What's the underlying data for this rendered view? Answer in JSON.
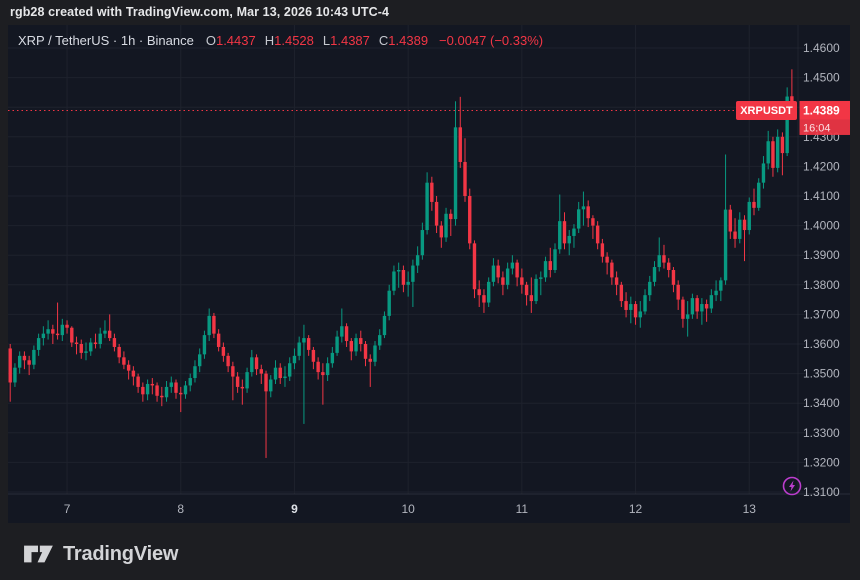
{
  "header": {
    "attribution": "rgb28 created with TradingView.com, Mar 13, 2026 10:43 UTC-4"
  },
  "legend": {
    "symbol_title": "XRP / TetherUS · 1h · Binance",
    "items": [
      {
        "k": "O",
        "v": "1.4437"
      },
      {
        "k": "H",
        "v": "1.4528"
      },
      {
        "k": "L",
        "v": "1.4387"
      },
      {
        "k": "C",
        "v": "1.4389"
      }
    ],
    "change": "−0.0047 (−0.33%)"
  },
  "price_scale": {
    "labels": [
      "1.4600",
      "1.4500",
      "1.4300",
      "1.4200",
      "1.4100",
      "1.4000",
      "1.3900",
      "1.3800",
      "1.3700",
      "1.3600",
      "1.3500",
      "1.3400",
      "1.3300",
      "1.3200",
      "1.3100"
    ],
    "last_price_badge": {
      "symbol_flag": "XRPUSDT",
      "price": "1.4389",
      "countdown": "16:04"
    }
  },
  "time_scale": {
    "ticks": [
      {
        "index": 12,
        "label": "7",
        "bold": false
      },
      {
        "index": 36,
        "label": "8",
        "bold": false
      },
      {
        "index": 60,
        "label": "9",
        "bold": true
      },
      {
        "index": 84,
        "label": "10",
        "bold": false
      },
      {
        "index": 108,
        "label": "11",
        "bold": false
      },
      {
        "index": 132,
        "label": "12",
        "bold": false
      },
      {
        "index": 156,
        "label": "13",
        "bold": false
      }
    ]
  },
  "footer": {
    "logo_text": "TradingView"
  },
  "colors": {
    "up": "#089981",
    "down": "#f23645",
    "chart_bg": "#131722",
    "outer_bg": "#1d1e22",
    "grid": "#1e222d",
    "separator": "#2a2e39",
    "axis_text": "#b2b5be",
    "axis_text_bold": "#dfe2e8",
    "badge_bg": "#f23645",
    "flash_icon": "#bb3dcd"
  },
  "chart_data": {
    "type": "candlestick",
    "symbol": "XRP/USDT",
    "exchange": "Binance",
    "interval": "1h",
    "title": "XRP / TetherUS · 1h · Binance",
    "current_price": 1.4389,
    "current_ohlc": {
      "o": 1.4437,
      "h": 1.4528,
      "l": 1.4387,
      "c": 1.4389
    },
    "change": -0.0047,
    "change_pct": -0.33,
    "ylim": [
      1.3093,
      1.4678
    ],
    "price_grid_step": 0.01,
    "price_grid": [
      1.31,
      1.32,
      1.33,
      1.34,
      1.35,
      1.36,
      1.37,
      1.38,
      1.39,
      1.4,
      1.41,
      1.42,
      1.43,
      1.44,
      1.45,
      1.46
    ],
    "hidden_price_label": 1.44,
    "x_axis_day_labels": [
      "7",
      "8",
      "9",
      "10",
      "11",
      "12",
      "13"
    ],
    "candles_format": [
      "open",
      "high",
      "low",
      "close"
    ],
    "candles": [
      [
        1.3585,
        1.36,
        1.3405,
        1.347
      ],
      [
        1.347,
        1.3535,
        1.3455,
        1.352
      ],
      [
        1.352,
        1.3575,
        1.35,
        1.356
      ],
      [
        1.356,
        1.3575,
        1.3515,
        1.3545
      ],
      [
        1.3545,
        1.356,
        1.3495,
        1.353
      ],
      [
        1.353,
        1.3595,
        1.3515,
        1.358
      ],
      [
        1.358,
        1.3635,
        1.356,
        1.362
      ],
      [
        1.362,
        1.366,
        1.3595,
        1.3635
      ],
      [
        1.3635,
        1.368,
        1.3615,
        1.365
      ],
      [
        1.365,
        1.3665,
        1.36,
        1.3635
      ],
      [
        1.3635,
        1.374,
        1.3615,
        1.363
      ],
      [
        1.363,
        1.3685,
        1.361,
        1.3665
      ],
      [
        1.3665,
        1.368,
        1.3635,
        1.3655
      ],
      [
        1.3655,
        1.366,
        1.359,
        1.3605
      ],
      [
        1.3605,
        1.3625,
        1.3565,
        1.36
      ],
      [
        1.36,
        1.3615,
        1.355,
        1.357
      ],
      [
        1.357,
        1.3605,
        1.3545,
        1.3575
      ],
      [
        1.3575,
        1.362,
        1.356,
        1.3605
      ],
      [
        1.3605,
        1.3635,
        1.3585,
        1.36
      ],
      [
        1.36,
        1.3655,
        1.3585,
        1.3635
      ],
      [
        1.3635,
        1.368,
        1.362,
        1.3645
      ],
      [
        1.3645,
        1.37,
        1.361,
        1.362
      ],
      [
        1.362,
        1.3635,
        1.3575,
        1.359
      ],
      [
        1.359,
        1.36,
        1.3535,
        1.3555
      ],
      [
        1.3555,
        1.3575,
        1.3515,
        1.353
      ],
      [
        1.353,
        1.3545,
        1.348,
        1.351
      ],
      [
        1.351,
        1.3525,
        1.346,
        1.349
      ],
      [
        1.349,
        1.35,
        1.3435,
        1.3455
      ],
      [
        1.3455,
        1.347,
        1.3405,
        1.343
      ],
      [
        1.343,
        1.348,
        1.341,
        1.3465
      ],
      [
        1.3465,
        1.3485,
        1.343,
        1.346
      ],
      [
        1.346,
        1.347,
        1.3405,
        1.3425
      ],
      [
        1.3425,
        1.3455,
        1.339,
        1.342
      ],
      [
        1.342,
        1.3475,
        1.3405,
        1.3455
      ],
      [
        1.3455,
        1.349,
        1.3435,
        1.347
      ],
      [
        1.347,
        1.348,
        1.3415,
        1.3435
      ],
      [
        1.3435,
        1.3455,
        1.337,
        1.343
      ],
      [
        1.343,
        1.3475,
        1.3415,
        1.346
      ],
      [
        1.346,
        1.35,
        1.344,
        1.3485
      ],
      [
        1.3485,
        1.3545,
        1.347,
        1.3525
      ],
      [
        1.3525,
        1.3585,
        1.3505,
        1.3565
      ],
      [
        1.3565,
        1.3645,
        1.355,
        1.363
      ],
      [
        1.363,
        1.372,
        1.361,
        1.3695
      ],
      [
        1.3695,
        1.3705,
        1.362,
        1.3635
      ],
      [
        1.3635,
        1.365,
        1.3575,
        1.359
      ],
      [
        1.359,
        1.3605,
        1.354,
        1.356
      ],
      [
        1.356,
        1.357,
        1.3505,
        1.3525
      ],
      [
        1.3525,
        1.354,
        1.341,
        1.349
      ],
      [
        1.349,
        1.3505,
        1.3435,
        1.3455
      ],
      [
        1.3455,
        1.348,
        1.3395,
        1.345
      ],
      [
        1.345,
        1.352,
        1.3435,
        1.3505
      ],
      [
        1.3505,
        1.358,
        1.349,
        1.3555
      ],
      [
        1.3555,
        1.3565,
        1.3495,
        1.3515
      ],
      [
        1.3515,
        1.353,
        1.3465,
        1.35
      ],
      [
        1.35,
        1.351,
        1.3215,
        1.344
      ],
      [
        1.344,
        1.3495,
        1.342,
        1.348
      ],
      [
        1.348,
        1.3545,
        1.3465,
        1.352
      ],
      [
        1.352,
        1.3535,
        1.3465,
        1.3485
      ],
      [
        1.3485,
        1.3525,
        1.3455,
        1.349
      ],
      [
        1.349,
        1.3555,
        1.3475,
        1.3535
      ],
      [
        1.3535,
        1.3585,
        1.3515,
        1.356
      ],
      [
        1.356,
        1.3625,
        1.3545,
        1.3605
      ],
      [
        1.3605,
        1.3665,
        1.333,
        1.362
      ],
      [
        1.362,
        1.363,
        1.356,
        1.358
      ],
      [
        1.358,
        1.359,
        1.3515,
        1.354
      ],
      [
        1.354,
        1.3555,
        1.348,
        1.3505
      ],
      [
        1.3505,
        1.3535,
        1.3395,
        1.3495
      ],
      [
        1.3495,
        1.3555,
        1.3475,
        1.3535
      ],
      [
        1.3535,
        1.359,
        1.352,
        1.357
      ],
      [
        1.357,
        1.3645,
        1.356,
        1.3625
      ],
      [
        1.3625,
        1.372,
        1.3605,
        1.366
      ],
      [
        1.366,
        1.367,
        1.359,
        1.361
      ],
      [
        1.361,
        1.362,
        1.3545,
        1.3575
      ],
      [
        1.3575,
        1.3635,
        1.356,
        1.362
      ],
      [
        1.362,
        1.3645,
        1.3575,
        1.36
      ],
      [
        1.36,
        1.361,
        1.3525,
        1.355
      ],
      [
        1.355,
        1.3565,
        1.3455,
        1.354
      ],
      [
        1.354,
        1.361,
        1.3525,
        1.3595
      ],
      [
        1.3595,
        1.365,
        1.358,
        1.363
      ],
      [
        1.363,
        1.371,
        1.362,
        1.3695
      ],
      [
        1.3695,
        1.38,
        1.368,
        1.378
      ],
      [
        1.378,
        1.3865,
        1.3765,
        1.3845
      ],
      [
        1.3845,
        1.3875,
        1.379,
        1.385
      ],
      [
        1.385,
        1.3865,
        1.3775,
        1.38
      ],
      [
        1.38,
        1.3845,
        1.376,
        1.381
      ],
      [
        1.381,
        1.3885,
        1.3725,
        1.3865
      ],
      [
        1.3865,
        1.393,
        1.384,
        1.39
      ],
      [
        1.39,
        1.401,
        1.3885,
        1.3985
      ],
      [
        1.3985,
        1.418,
        1.397,
        1.4145
      ],
      [
        1.4145,
        1.4165,
        1.405,
        1.408
      ],
      [
        1.408,
        1.41,
        1.3975,
        1.4
      ],
      [
        1.4,
        1.4015,
        1.3925,
        1.396
      ],
      [
        1.396,
        1.406,
        1.3945,
        1.404
      ],
      [
        1.404,
        1.4055,
        1.3965,
        1.4022
      ],
      [
        1.4022,
        1.442,
        1.4,
        1.4332
      ],
      [
        1.4332,
        1.4435,
        1.4195,
        1.4215
      ],
      [
        1.4215,
        1.4295,
        1.408,
        1.41
      ],
      [
        1.41,
        1.4125,
        1.392,
        1.394
      ],
      [
        1.394,
        1.395,
        1.3755,
        1.3785
      ],
      [
        1.3785,
        1.3815,
        1.3725,
        1.3765
      ],
      [
        1.3765,
        1.3785,
        1.3705,
        1.374
      ],
      [
        1.374,
        1.3825,
        1.3725,
        1.381
      ],
      [
        1.381,
        1.389,
        1.3795,
        1.3865
      ],
      [
        1.3865,
        1.3885,
        1.3805,
        1.3825
      ],
      [
        1.3825,
        1.3845,
        1.3765,
        1.38
      ],
      [
        1.38,
        1.3875,
        1.3785,
        1.3855
      ],
      [
        1.3855,
        1.39,
        1.3835,
        1.3875
      ],
      [
        1.3875,
        1.3885,
        1.3795,
        1.3825
      ],
      [
        1.3825,
        1.3855,
        1.377,
        1.38
      ],
      [
        1.38,
        1.381,
        1.373,
        1.3765
      ],
      [
        1.3765,
        1.3825,
        1.3705,
        1.3745
      ],
      [
        1.3745,
        1.3835,
        1.3735,
        1.382
      ],
      [
        1.382,
        1.3845,
        1.3765,
        1.3825
      ],
      [
        1.3825,
        1.3895,
        1.381,
        1.388
      ],
      [
        1.388,
        1.3925,
        1.3825,
        1.385
      ],
      [
        1.385,
        1.394,
        1.384,
        1.392
      ],
      [
        1.392,
        1.4105,
        1.3905,
        1.4015
      ],
      [
        1.4015,
        1.4045,
        1.392,
        1.394
      ],
      [
        1.394,
        1.3985,
        1.39,
        1.3965
      ],
      [
        1.3965,
        1.4005,
        1.3925,
        1.399
      ],
      [
        1.399,
        1.408,
        1.3975,
        1.4055
      ],
      [
        1.4055,
        1.4115,
        1.4,
        1.4065
      ],
      [
        1.4065,
        1.4085,
        1.3995,
        1.4025
      ],
      [
        1.4025,
        1.4035,
        1.3955,
        1.4
      ],
      [
        1.4,
        1.4015,
        1.392,
        1.394
      ],
      [
        1.394,
        1.3955,
        1.3875,
        1.3895
      ],
      [
        1.3895,
        1.391,
        1.3835,
        1.3875
      ],
      [
        1.3875,
        1.3885,
        1.38,
        1.3825
      ],
      [
        1.3825,
        1.3845,
        1.3765,
        1.38
      ],
      [
        1.38,
        1.381,
        1.3725,
        1.3745
      ],
      [
        1.3745,
        1.3775,
        1.369,
        1.3715
      ],
      [
        1.3715,
        1.376,
        1.367,
        1.3735
      ],
      [
        1.3735,
        1.3745,
        1.3665,
        1.369
      ],
      [
        1.369,
        1.3745,
        1.3655,
        1.371
      ],
      [
        1.371,
        1.3785,
        1.37,
        1.3765
      ],
      [
        1.3765,
        1.383,
        1.3745,
        1.381
      ],
      [
        1.381,
        1.388,
        1.3795,
        1.386
      ],
      [
        1.386,
        1.396,
        1.3845,
        1.39
      ],
      [
        1.39,
        1.3935,
        1.3855,
        1.3875
      ],
      [
        1.3875,
        1.389,
        1.3825,
        1.385
      ],
      [
        1.385,
        1.386,
        1.3775,
        1.38
      ],
      [
        1.38,
        1.3815,
        1.3715,
        1.375
      ],
      [
        1.375,
        1.376,
        1.3655,
        1.3685
      ],
      [
        1.3685,
        1.3745,
        1.3625,
        1.37
      ],
      [
        1.37,
        1.377,
        1.3685,
        1.3755
      ],
      [
        1.3755,
        1.3765,
        1.3685,
        1.371
      ],
      [
        1.371,
        1.3755,
        1.3665,
        1.3735
      ],
      [
        1.3735,
        1.375,
        1.3675,
        1.372
      ],
      [
        1.372,
        1.3785,
        1.3705,
        1.3765
      ],
      [
        1.3765,
        1.3815,
        1.3745,
        1.378
      ],
      [
        1.378,
        1.3825,
        1.3745,
        1.3815
      ],
      [
        1.3815,
        1.424,
        1.38,
        1.4054
      ],
      [
        1.4054,
        1.407,
        1.3955,
        1.398
      ],
      [
        1.398,
        1.4025,
        1.3925,
        1.3955
      ],
      [
        1.3955,
        1.4045,
        1.394,
        1.402
      ],
      [
        1.402,
        1.4035,
        1.388,
        1.3985
      ],
      [
        1.3985,
        1.4095,
        1.397,
        1.408
      ],
      [
        1.408,
        1.4125,
        1.4035,
        1.406
      ],
      [
        1.406,
        1.416,
        1.405,
        1.4145
      ],
      [
        1.4145,
        1.4235,
        1.4125,
        1.421
      ],
      [
        1.421,
        1.432,
        1.419,
        1.4285
      ],
      [
        1.4285,
        1.43,
        1.4165,
        1.4195
      ],
      [
        1.4195,
        1.4325,
        1.418,
        1.43
      ],
      [
        1.43,
        1.4315,
        1.417,
        1.4245
      ],
      [
        1.4245,
        1.4467,
        1.4235,
        1.4436
      ],
      [
        1.4437,
        1.4528,
        1.4387,
        1.4389
      ]
    ]
  }
}
